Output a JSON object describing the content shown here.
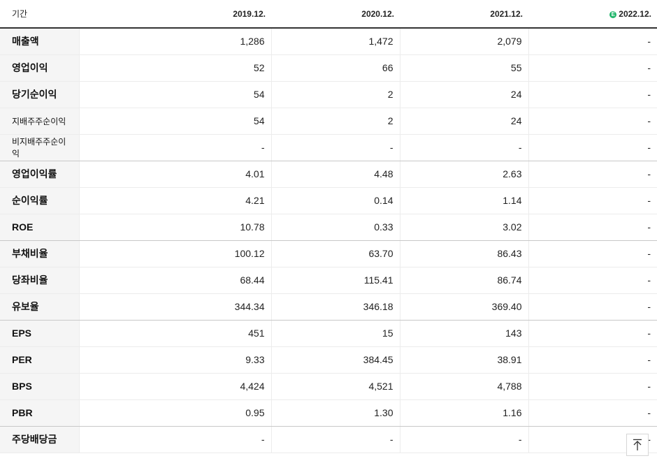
{
  "header": {
    "period_label": "기간",
    "columns": [
      "2019.12.",
      "2020.12.",
      "2021.12.",
      "2022.12."
    ],
    "estimate_badge": "E"
  },
  "rows": [
    {
      "label": "매출액",
      "values": [
        "1,286",
        "1,472",
        "2,079",
        "-"
      ]
    },
    {
      "label": "영업이익",
      "values": [
        "52",
        "66",
        "55",
        "-"
      ]
    },
    {
      "label": "당기순이익",
      "values": [
        "54",
        "2",
        "24",
        "-"
      ]
    },
    {
      "label": "지배주주순이익",
      "values": [
        "54",
        "2",
        "24",
        "-"
      ]
    },
    {
      "label": "비지배주주순이익",
      "values": [
        "-",
        "-",
        "-",
        "-"
      ]
    },
    {
      "label": "영업이익률",
      "values": [
        "4.01",
        "4.48",
        "2.63",
        "-"
      ]
    },
    {
      "label": "순이익률",
      "values": [
        "4.21",
        "0.14",
        "1.14",
        "-"
      ]
    },
    {
      "label": "ROE",
      "values": [
        "10.78",
        "0.33",
        "3.02",
        "-"
      ]
    },
    {
      "label": "부채비율",
      "values": [
        "100.12",
        "63.70",
        "86.43",
        "-"
      ]
    },
    {
      "label": "당좌비율",
      "values": [
        "68.44",
        "115.41",
        "86.74",
        "-"
      ]
    },
    {
      "label": "유보율",
      "values": [
        "344.34",
        "346.18",
        "369.40",
        "-"
      ]
    },
    {
      "label": "EPS",
      "values": [
        "451",
        "15",
        "143",
        "-"
      ]
    },
    {
      "label": "PER",
      "values": [
        "9.33",
        "384.45",
        "38.91",
        "-"
      ]
    },
    {
      "label": "BPS",
      "values": [
        "4,424",
        "4,521",
        "4,788",
        "-"
      ]
    },
    {
      "label": "PBR",
      "values": [
        "0.95",
        "1.30",
        "1.16",
        "-"
      ]
    },
    {
      "label": "주당배당금",
      "values": [
        "-",
        "-",
        "-",
        "-"
      ]
    }
  ],
  "colors": {
    "estimate_badge": "#1fb56a",
    "label_bg": "#f5f5f5"
  },
  "icons": {
    "scroll_top": "arrow-up-to-top-icon"
  }
}
